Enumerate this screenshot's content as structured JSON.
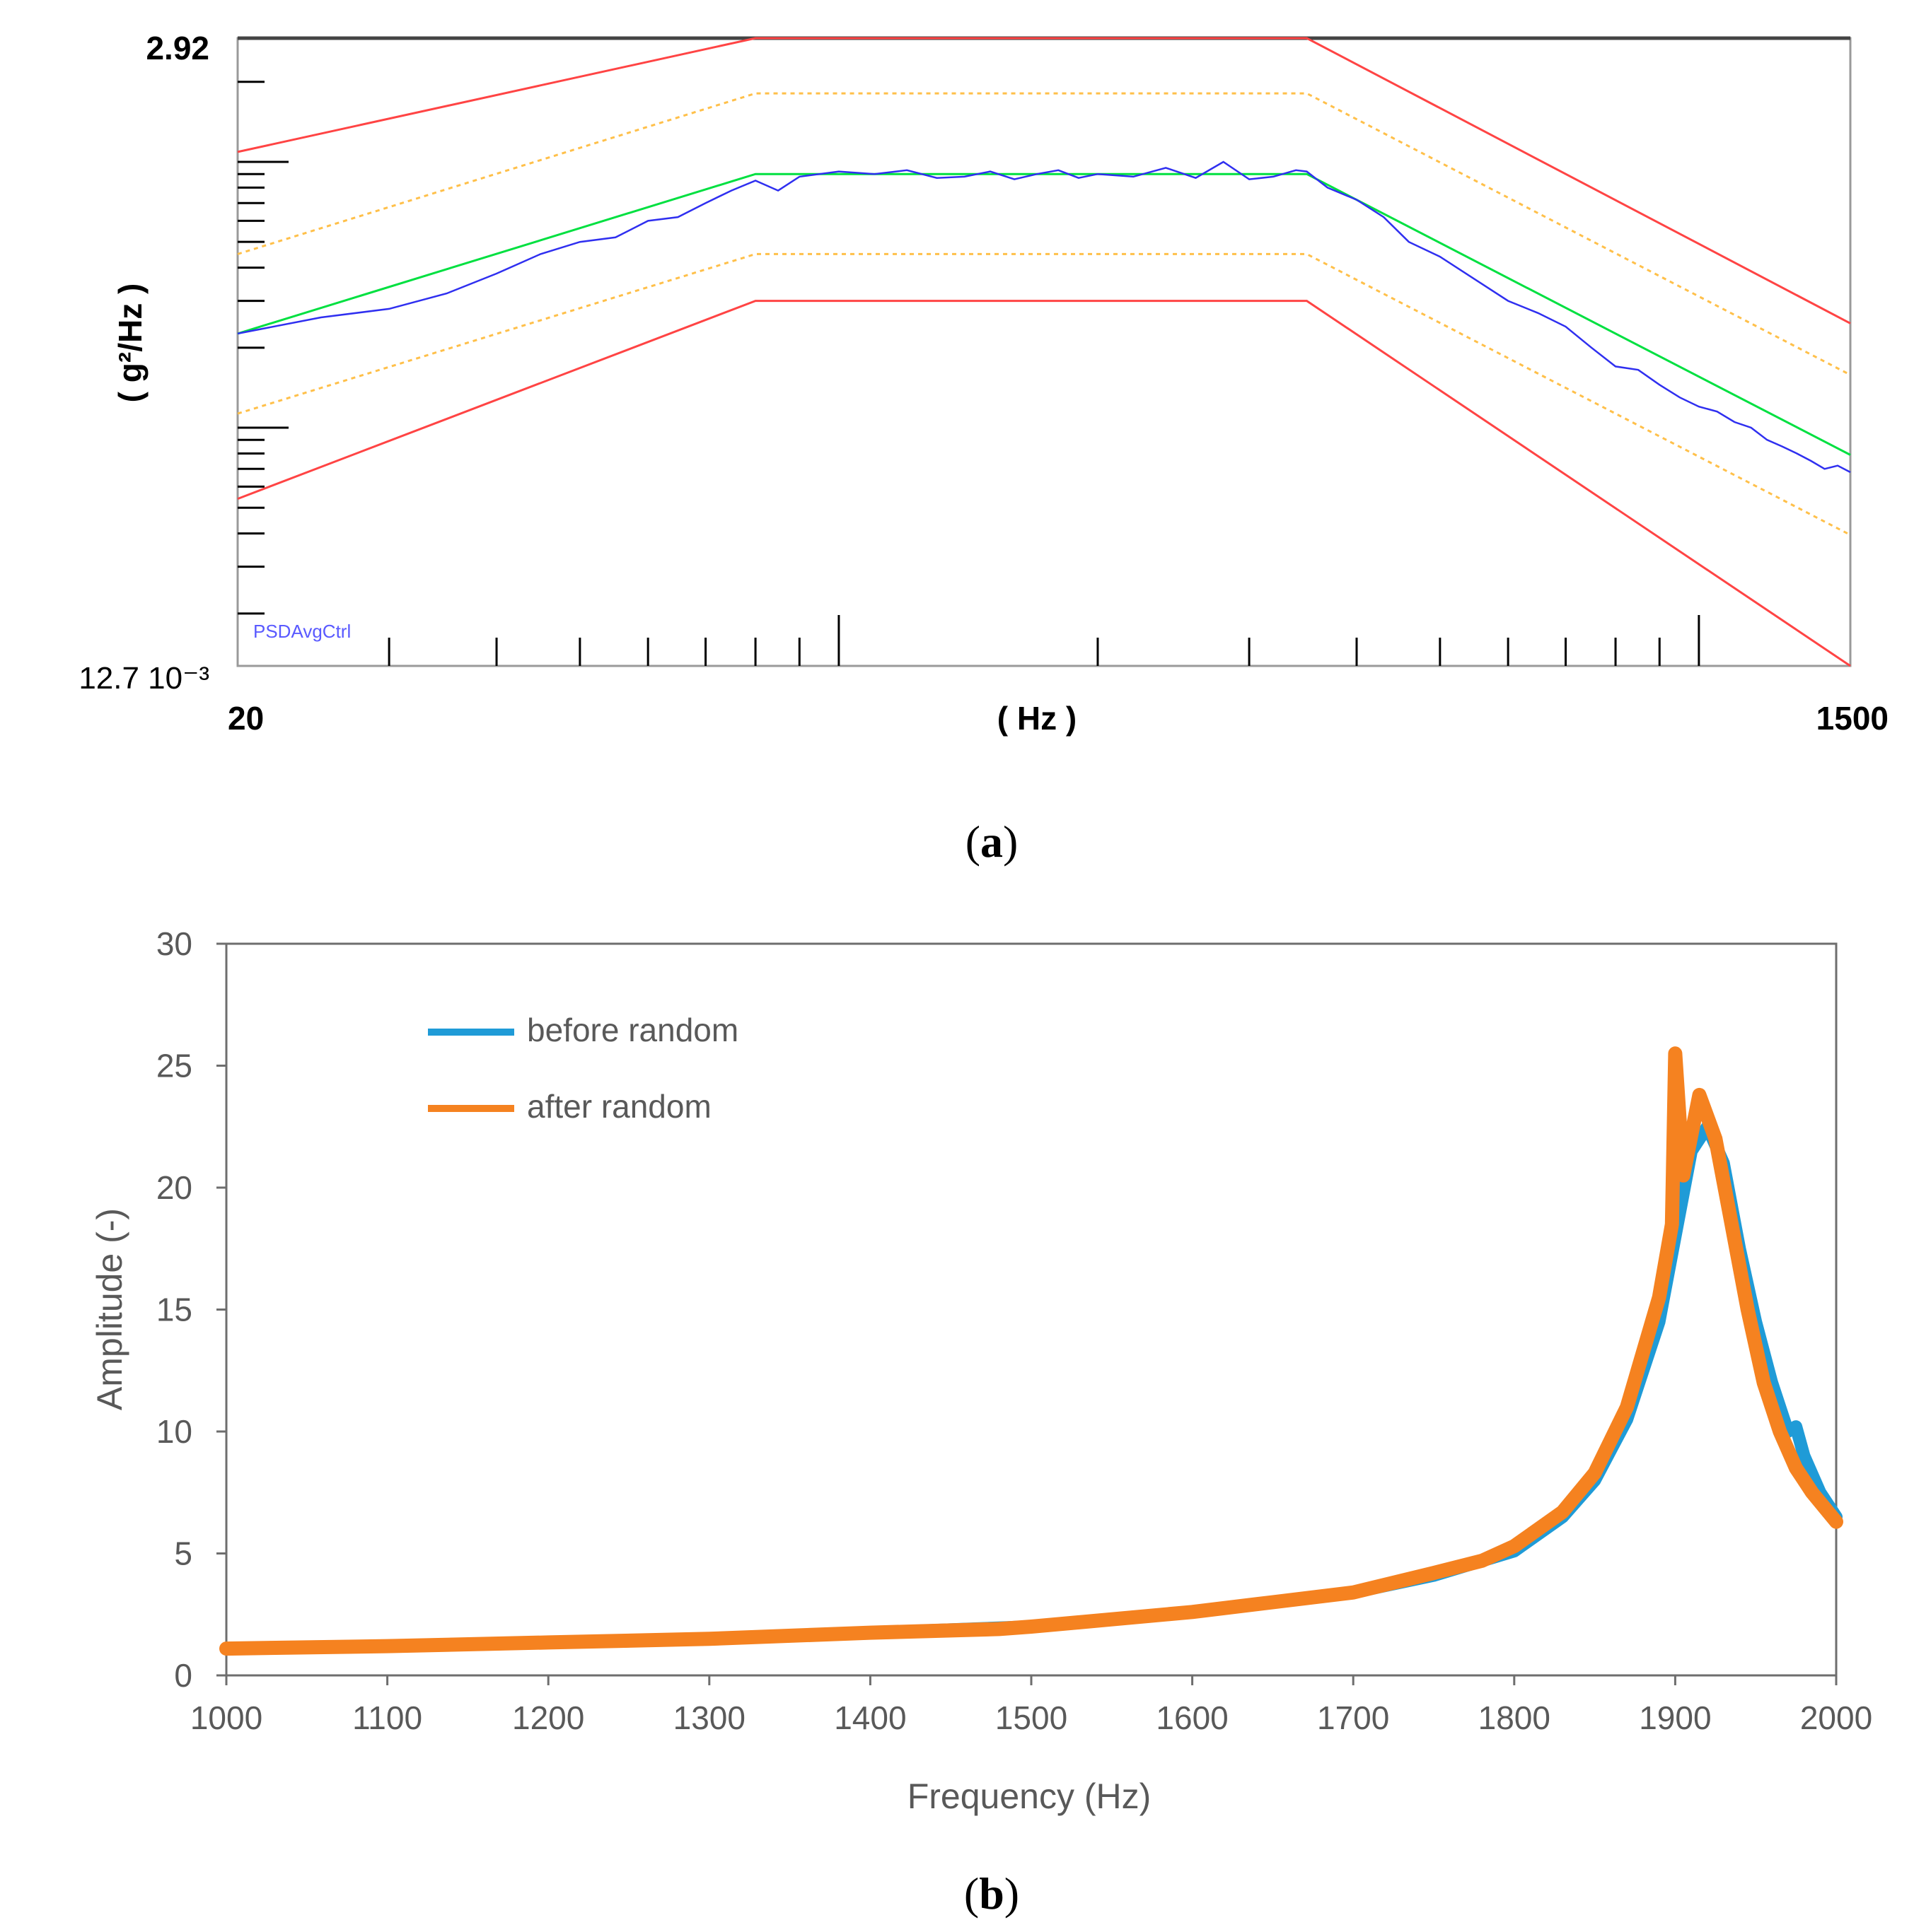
{
  "chart_data": [
    {
      "panel": "a",
      "type": "line",
      "scale": "log-log",
      "caption_letter": "a",
      "xlabel": "( Hz )",
      "ylabel": "( g²/Hz )",
      "xlim": [
        20,
        1500
      ],
      "ylim": [
        0.0127,
        2.92
      ],
      "x_tick_labels": [
        "20",
        "1500"
      ],
      "y_tick_labels": [
        "2.92",
        "12.7 10⁻³"
      ],
      "trace_label": "PSDAvgCtrl",
      "colors": {
        "abort": "#ff4444",
        "alarm": "#ffc04a",
        "reference": "#00e040",
        "control": "#2f2ff0",
        "frame": "#888888"
      },
      "series": [
        {
          "name": "abort-upper",
          "style": "solid",
          "color": "#ff4444",
          "x": [
            20,
            80,
            350,
            1500
          ],
          "y": [
            1.09,
            2.92,
            2.92,
            0.247
          ]
        },
        {
          "name": "alarm-upper",
          "style": "dotted",
          "color": "#ffc04a",
          "x": [
            20,
            80,
            350,
            1500
          ],
          "y": [
            0.45,
            1.81,
            1.81,
            0.158
          ]
        },
        {
          "name": "reference",
          "style": "solid",
          "color": "#00e040",
          "x": [
            20,
            80,
            350,
            1500
          ],
          "y": [
            0.226,
            0.9,
            0.9,
            0.079
          ]
        },
        {
          "name": "alarm-lower",
          "style": "dotted",
          "color": "#ffc04a",
          "x": [
            20,
            80,
            350,
            1500
          ],
          "y": [
            0.113,
            0.45,
            0.45,
            0.0395
          ]
        },
        {
          "name": "abort-lower",
          "style": "solid",
          "color": "#ff4444",
          "x": [
            20,
            80,
            350,
            1500
          ],
          "y": [
            0.054,
            0.3,
            0.3,
            0.0127
          ]
        },
        {
          "name": "PSDAvgCtrl",
          "style": "solid",
          "color": "#2f2ff0",
          "x": [
            20,
            25,
            30,
            35,
            40,
            45,
            50,
            55,
            60,
            65,
            70,
            75,
            80,
            85,
            90,
            100,
            110,
            120,
            130,
            140,
            150,
            160,
            170,
            180,
            190,
            200,
            220,
            240,
            260,
            280,
            300,
            320,
            340,
            350,
            370,
            400,
            430,
            460,
            500,
            550,
            600,
            650,
            700,
            750,
            800,
            850,
            900,
            950,
            1000,
            1050,
            1100,
            1150,
            1200,
            1250,
            1300,
            1350,
            1400,
            1450,
            1500
          ],
          "y": [
            0.226,
            0.26,
            0.28,
            0.32,
            0.38,
            0.45,
            0.5,
            0.52,
            0.6,
            0.62,
            0.7,
            0.78,
            0.85,
            0.78,
            0.88,
            0.92,
            0.9,
            0.93,
            0.87,
            0.88,
            0.92,
            0.86,
            0.9,
            0.93,
            0.87,
            0.9,
            0.88,
            0.95,
            0.87,
            1.0,
            0.86,
            0.88,
            0.93,
            0.92,
            0.8,
            0.72,
            0.62,
            0.5,
            0.44,
            0.36,
            0.3,
            0.27,
            0.24,
            0.2,
            0.17,
            0.165,
            0.145,
            0.13,
            0.12,
            0.115,
            0.105,
            0.1,
            0.09,
            0.085,
            0.08,
            0.075,
            0.07,
            0.072,
            0.068
          ]
        }
      ]
    },
    {
      "panel": "b",
      "type": "line",
      "caption_letter": "b",
      "xlabel": "Frequency (Hz)",
      "ylabel": "Amplitude (-)",
      "xlim": [
        1000,
        2000
      ],
      "ylim": [
        0,
        30
      ],
      "x_ticks": [
        "1000",
        "1100",
        "1200",
        "1300",
        "1400",
        "1500",
        "1600",
        "1700",
        "1800",
        "1900",
        "2000"
      ],
      "y_ticks": [
        "0",
        "5",
        "10",
        "15",
        "20",
        "25",
        "30"
      ],
      "legend_position": "top-left",
      "series": [
        {
          "name": "before random",
          "color": "#1f9bd7",
          "x": [
            1000,
            1100,
            1200,
            1300,
            1400,
            1500,
            1550,
            1600,
            1650,
            1700,
            1750,
            1800,
            1830,
            1850,
            1870,
            1890,
            1900,
            1910,
            1920,
            1930,
            1940,
            1950,
            1960,
            1970,
            1975,
            1980,
            1990,
            2000
          ],
          "y": [
            1.1,
            1.2,
            1.35,
            1.5,
            1.75,
            2.0,
            2.3,
            2.6,
            3.0,
            3.4,
            4.1,
            5.1,
            6.5,
            8.0,
            10.5,
            14.5,
            18.0,
            21.5,
            22.5,
            21.0,
            17.5,
            14.5,
            12.0,
            10.0,
            10.2,
            9.0,
            7.5,
            6.5
          ]
        },
        {
          "name": "after random",
          "color": "#f58220",
          "x": [
            1000,
            1100,
            1200,
            1300,
            1400,
            1480,
            1500,
            1550,
            1600,
            1650,
            1700,
            1750,
            1780,
            1800,
            1830,
            1850,
            1870,
            1890,
            1898,
            1900,
            1905,
            1915,
            1925,
            1935,
            1945,
            1955,
            1965,
            1975,
            1985,
            2000
          ],
          "y": [
            1.1,
            1.2,
            1.35,
            1.5,
            1.75,
            1.9,
            2.0,
            2.3,
            2.6,
            3.0,
            3.4,
            4.2,
            4.7,
            5.3,
            6.7,
            8.3,
            11.0,
            15.5,
            18.5,
            25.5,
            20.5,
            23.8,
            22.0,
            18.5,
            15.0,
            12.0,
            10.0,
            8.5,
            7.5,
            6.3
          ]
        }
      ]
    }
  ]
}
